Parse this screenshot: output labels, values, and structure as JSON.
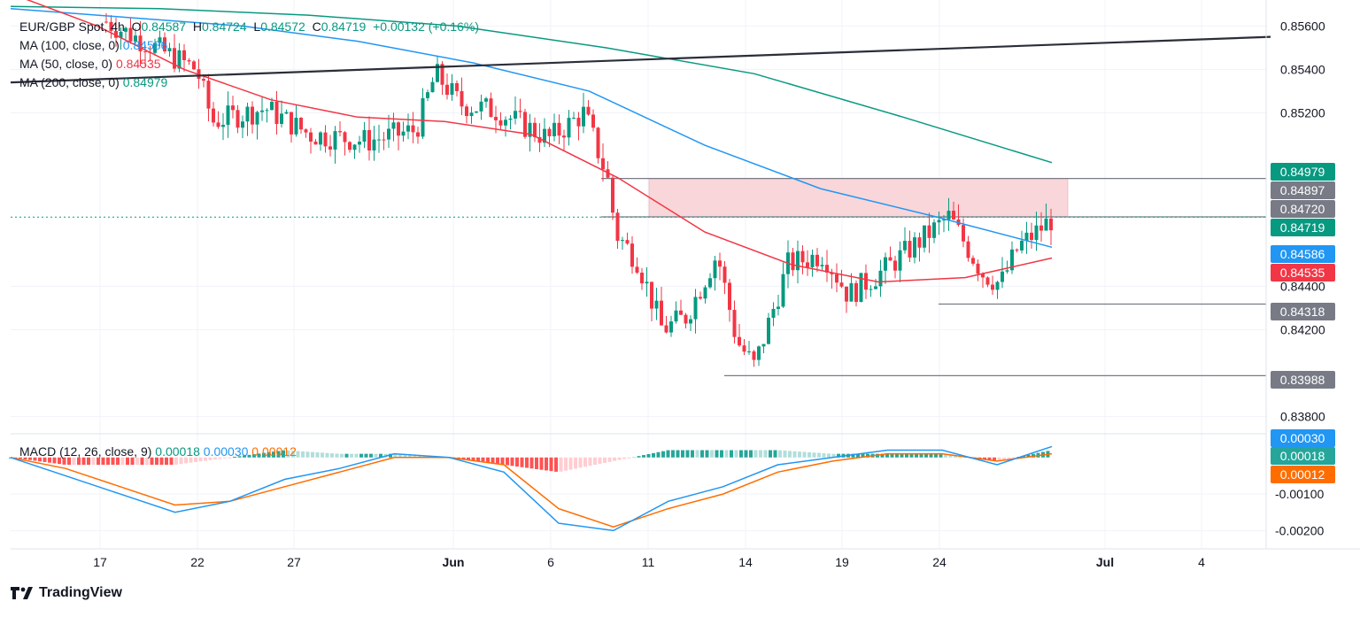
{
  "header": {
    "symbol": "EUR/GBP Spot",
    "interval": "4h",
    "open_label": "O",
    "open": "0.84587",
    "high_label": "H",
    "high": "0.84724",
    "low_label": "L",
    "low": "0.84572",
    "close_label": "C",
    "close": "0.84719",
    "change": "+0.00132",
    "change_pct": "(+0.16%)"
  },
  "indicators": {
    "ma100": {
      "label": "MA (100, close, 0)",
      "value": "0.84586",
      "color": "#2196f3"
    },
    "ma50": {
      "label": "MA (50, close, 0)",
      "value": "0.84535",
      "color": "#f23645"
    },
    "ma200": {
      "label": "MA (200, close, 0)",
      "value": "0.84979",
      "color": "#089981"
    },
    "macd": {
      "label": "MACD (12, 26, close, 9)",
      "hist": "0.00018",
      "macd": "0.00030",
      "signal": "0.00012"
    }
  },
  "colors": {
    "up": "#089981",
    "down": "#f23645",
    "ma100": "#2196f3",
    "ma50": "#f23645",
    "ma200": "#089981",
    "signal": "#ff6d00",
    "trendline": "#2a2e39",
    "zone": "#f9d6d9"
  },
  "chart_data": {
    "type": "candlestick",
    "timeframe": "4h",
    "y_axis_ticks": [
      "0.85600",
      "0.85400",
      "0.85200",
      "0.84400",
      "0.84200",
      "0.83800"
    ],
    "ylim": [
      0.8372,
      0.8572
    ],
    "x_axis_labels": [
      "17",
      "22",
      "27",
      "Jun",
      "6",
      "11",
      "14",
      "19",
      "24",
      "Jul",
      "4"
    ],
    "price_labels": [
      {
        "value": "0.84979",
        "kind": "ma200"
      },
      {
        "value": "0.84897",
        "kind": "level"
      },
      {
        "value": "0.84720",
        "kind": "level"
      },
      {
        "value": "0.84719",
        "kind": "last"
      },
      {
        "value": "0.84586",
        "kind": "ma100"
      },
      {
        "value": "0.84535",
        "kind": "ma50"
      },
      {
        "value": "0.84318",
        "kind": "level"
      },
      {
        "value": "0.83988",
        "kind": "level"
      }
    ],
    "horizontal_levels": [
      0.84897,
      0.8472,
      0.84318,
      0.83988
    ],
    "resistance_zone": [
      0.8472,
      0.84897
    ],
    "trendline": {
      "start": 0.8534,
      "end": 0.8555
    },
    "ma200_path": [
      0.8569,
      0.8568,
      0.8565,
      0.856,
      0.855,
      0.8538,
      0.8518,
      0.8497
    ],
    "ma100_path": [
      0.8568,
      0.8564,
      0.856,
      0.8553,
      0.8543,
      0.853,
      0.8505,
      0.8485,
      0.8472,
      0.8458
    ],
    "ma50_path": [
      0.8575,
      0.856,
      0.854,
      0.8526,
      0.8518,
      0.8516,
      0.851,
      0.849,
      0.8465,
      0.845,
      0.8442,
      0.8444,
      0.8453
    ],
    "macd_axis_ticks": [
      "-0.00100",
      "-0.00200"
    ],
    "macd_ylim": [
      -0.0025,
      0.0006
    ],
    "macd_price_labels": [
      {
        "value": "0.00030",
        "kind": "macd"
      },
      {
        "value": "0.00018",
        "kind": "hist"
      },
      {
        "value": "0.00012",
        "kind": "signal"
      }
    ],
    "macd_path": [
      0.0,
      -0.0005,
      -0.001,
      -0.0015,
      -0.0012,
      -0.0006,
      -0.0003,
      0.0001,
      0.0,
      -0.0004,
      -0.0018,
      -0.002,
      -0.0012,
      -0.0008,
      -0.0002,
      0.0,
      0.0002,
      0.0002,
      -0.0002,
      0.0003
    ],
    "signal_path": [
      0.0,
      -0.0003,
      -0.0008,
      -0.0013,
      -0.0012,
      -0.0008,
      -0.0004,
      0.0,
      0.0,
      -0.0002,
      -0.0014,
      -0.0019,
      -0.0014,
      -0.001,
      -0.0004,
      -0.0001,
      0.0001,
      0.0001,
      -0.0001,
      0.0001
    ]
  },
  "branding": {
    "name": "TradingView"
  }
}
